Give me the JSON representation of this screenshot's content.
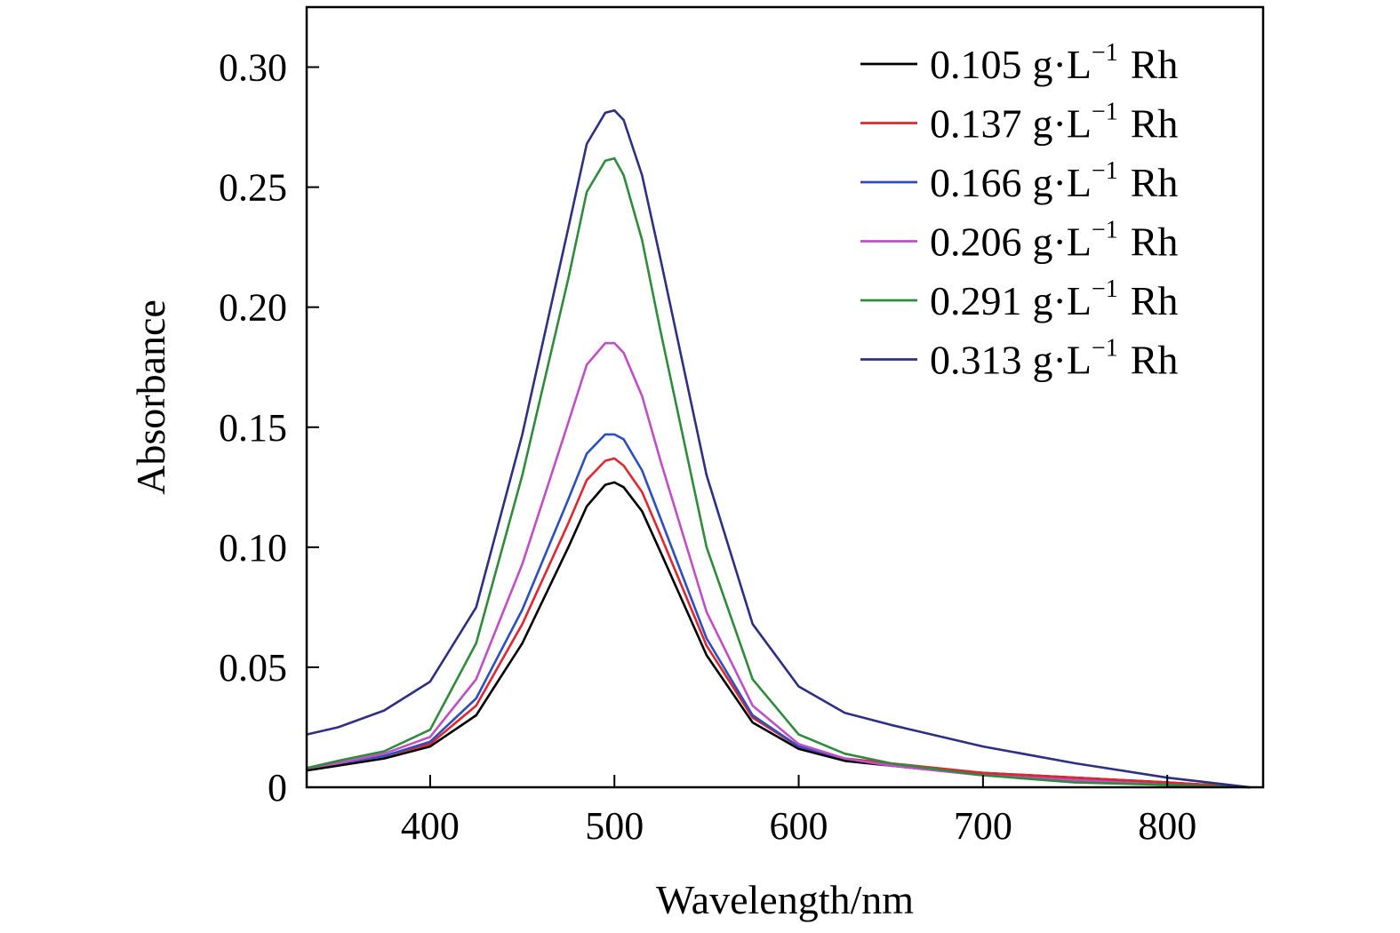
{
  "chart_data": {
    "type": "line",
    "title": "",
    "xlabel": "Wavelength/nm",
    "ylabel": "Absorbance",
    "xlim": [
      333,
      852
    ],
    "ylim": [
      0,
      0.325
    ],
    "x_ticks": [
      400,
      500,
      600,
      700,
      800
    ],
    "x_tick_labels": [
      "400",
      "500",
      "600",
      "700",
      "800"
    ],
    "y_ticks": [
      0,
      0.05,
      0.1,
      0.15,
      0.2,
      0.25,
      0.3
    ],
    "y_tick_labels": [
      "0",
      "0.05",
      "0.10",
      "0.15",
      "0.20",
      "0.25",
      "0.30"
    ],
    "grid": false,
    "legend_position": "top-right",
    "x": [
      333,
      350,
      375,
      400,
      425,
      450,
      475,
      485,
      495,
      500,
      505,
      515,
      525,
      550,
      575,
      600,
      625,
      650,
      700,
      750,
      800,
      845
    ],
    "series": [
      {
        "label_value": "0.105",
        "label_unit": "g·L",
        "label_sup": "−1",
        "label_tail": "Rh",
        "color": "#000000",
        "values": [
          0.007,
          0.009,
          0.012,
          0.017,
          0.03,
          0.06,
          0.1,
          0.117,
          0.126,
          0.127,
          0.125,
          0.115,
          0.098,
          0.055,
          0.027,
          0.016,
          0.011,
          0.009,
          0.006,
          0.004,
          0.002,
          0.0
        ]
      },
      {
        "label_value": "0.137",
        "label_unit": "g·L",
        "label_sup": "−1",
        "label_tail": "Rh",
        "color": "#e0262e",
        "values": [
          0.008,
          0.01,
          0.013,
          0.018,
          0.034,
          0.068,
          0.11,
          0.128,
          0.136,
          0.137,
          0.134,
          0.123,
          0.105,
          0.059,
          0.029,
          0.017,
          0.012,
          0.01,
          0.006,
          0.004,
          0.002,
          0.0
        ]
      },
      {
        "label_value": "0.166",
        "label_unit": "g·L",
        "label_sup": "−1",
        "label_tail": "Rh",
        "color": "#2b4fbf",
        "values": [
          0.008,
          0.01,
          0.013,
          0.019,
          0.037,
          0.074,
          0.12,
          0.139,
          0.147,
          0.147,
          0.145,
          0.132,
          0.112,
          0.062,
          0.03,
          0.017,
          0.012,
          0.009,
          0.005,
          0.003,
          0.001,
          0.0
        ]
      },
      {
        "label_value": "0.206",
        "label_unit": "g·L",
        "label_sup": "−1",
        "label_tail": "Rh",
        "color": "#c04ec4",
        "values": [
          0.008,
          0.01,
          0.014,
          0.021,
          0.045,
          0.093,
          0.152,
          0.176,
          0.185,
          0.185,
          0.181,
          0.163,
          0.136,
          0.073,
          0.034,
          0.018,
          0.012,
          0.009,
          0.005,
          0.003,
          0.001,
          0.0
        ]
      },
      {
        "label_value": "0.291",
        "label_unit": "g·L",
        "label_sup": "−1",
        "label_tail": "Rh",
        "color": "#2e8b3c",
        "values": [
          0.008,
          0.011,
          0.015,
          0.024,
          0.06,
          0.13,
          0.212,
          0.248,
          0.261,
          0.262,
          0.255,
          0.228,
          0.19,
          0.1,
          0.045,
          0.022,
          0.014,
          0.01,
          0.005,
          0.002,
          0.001,
          0.0
        ]
      },
      {
        "label_value": "0.313",
        "label_unit": "g·L",
        "label_sup": "−1",
        "label_tail": "Rh",
        "color": "#2d2f82",
        "values": [
          0.022,
          0.025,
          0.032,
          0.044,
          0.075,
          0.147,
          0.233,
          0.268,
          0.281,
          0.282,
          0.278,
          0.255,
          0.22,
          0.13,
          0.068,
          0.042,
          0.031,
          0.026,
          0.017,
          0.01,
          0.004,
          0.0
        ]
      }
    ]
  }
}
